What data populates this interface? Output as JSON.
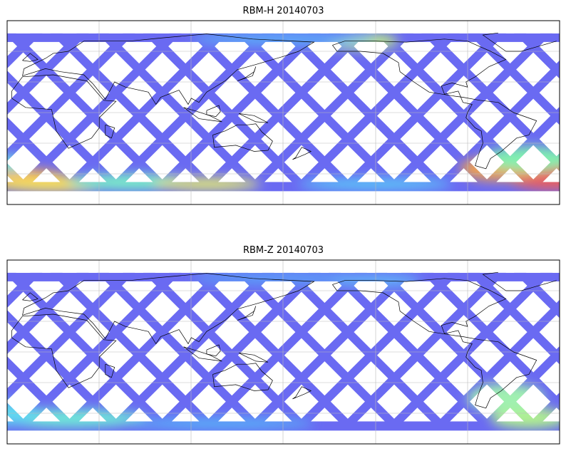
{
  "panels": [
    {
      "title": "RBM-H 20140703",
      "track_color": "#6a6af2",
      "patches": [
        {
          "lon": -10,
          "lat": -65,
          "rx": 30,
          "ry": 10,
          "color": "#f5a048"
        },
        {
          "lon": 10,
          "lat": -70,
          "rx": 40,
          "ry": 8,
          "color": "#f5e060"
        },
        {
          "lon": 60,
          "lat": -68,
          "rx": 40,
          "ry": 8,
          "color": "#7af0c8"
        },
        {
          "lon": 110,
          "lat": -70,
          "rx": 35,
          "ry": 6,
          "color": "#e8f070"
        },
        {
          "lon": -20,
          "lat": -50,
          "rx": 15,
          "ry": 8,
          "color": "#70e0e0"
        },
        {
          "lon": -25,
          "lat": -62,
          "rx": 30,
          "ry": 14,
          "color": "#e86060"
        },
        {
          "lon": -60,
          "lat": -55,
          "rx": 25,
          "ry": 12,
          "color": "#f0a050"
        },
        {
          "lon": -40,
          "lat": -45,
          "rx": 30,
          "ry": 12,
          "color": "#80f0b0"
        },
        {
          "lon": -150,
          "lat": 70,
          "rx": 25,
          "ry": 8,
          "color": "#c0f080"
        },
        {
          "lon": 160,
          "lat": 72,
          "rx": 60,
          "ry": 6,
          "color": "#5ab0f8"
        },
        {
          "lon": -140,
          "lat": -70,
          "rx": 50,
          "ry": 6,
          "color": "#5cc8f8"
        }
      ]
    },
    {
      "title": "RBM-Z 20140703",
      "track_color": "#6a6af2",
      "patches": [
        {
          "lon": 20,
          "lat": -65,
          "rx": 50,
          "ry": 9,
          "color": "#70e8d8"
        },
        {
          "lon": -40,
          "lat": -65,
          "rx": 25,
          "ry": 10,
          "color": "#b0f090"
        },
        {
          "lon": -55,
          "lat": -45,
          "rx": 25,
          "ry": 14,
          "color": "#a0f0b0"
        },
        {
          "lon": -20,
          "lat": -60,
          "rx": 20,
          "ry": 12,
          "color": "#60d8f0"
        },
        {
          "lon": 160,
          "lat": 72,
          "rx": 60,
          "ry": 6,
          "color": "#5aa0f8"
        },
        {
          "lon": -140,
          "lat": 70,
          "rx": 30,
          "ry": 6,
          "color": "#60b8f8"
        },
        {
          "lon": 120,
          "lat": -70,
          "rx": 60,
          "ry": 6,
          "color": "#58b0f8"
        }
      ]
    }
  ]
}
